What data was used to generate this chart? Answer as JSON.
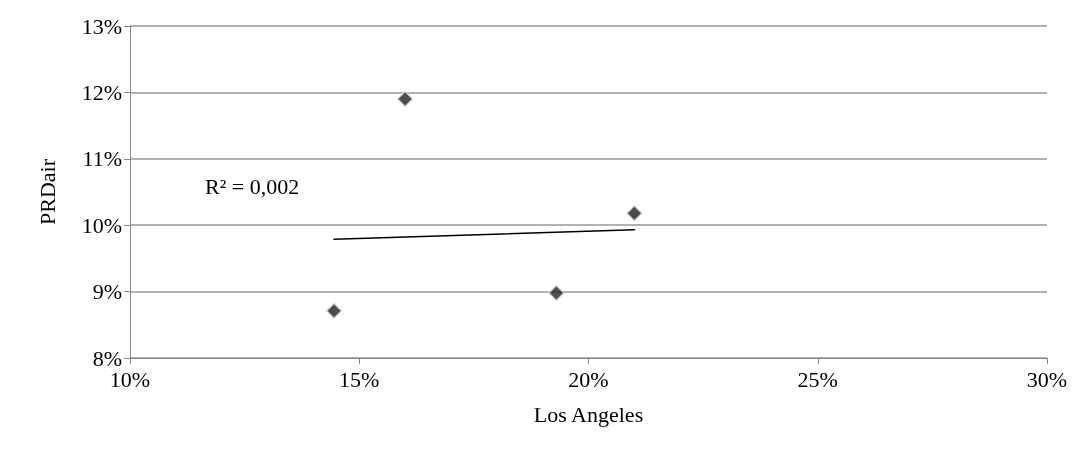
{
  "chart_data": {
    "type": "scatter",
    "xlabel": "Los Angeles",
    "ylabel": "PRDair",
    "x": [
      14.45,
      16.0,
      19.3,
      21.0
    ],
    "series": [
      {
        "color": "#231f20",
        "values": [
          8.71,
          11.9,
          8.98,
          10.18
        ],
        "marker": "diamond"
      },
      {
        "type": "line",
        "color": "#000000",
        "x": [
          14.45,
          21.0
        ],
        "values": [
          9.79,
          9.93
        ],
        "marker": "none",
        "line_style": "solid"
      }
    ],
    "xlim": [
      10,
      30
    ],
    "xticks": [
      {
        "value": 10,
        "label": "10%"
      },
      {
        "value": 15,
        "label": "15%"
      },
      {
        "value": 20,
        "label": "20%"
      },
      {
        "value": 25,
        "label": "25%"
      },
      {
        "value": 30,
        "label": "30%"
      }
    ],
    "ylim": [
      8,
      13
    ],
    "yticks": [
      {
        "value": 8,
        "label": "8%"
      },
      {
        "value": 9,
        "label": "9%"
      },
      {
        "value": 10,
        "label": "10%"
      },
      {
        "value": 11,
        "label": "11%"
      },
      {
        "value": 12,
        "label": "12%"
      },
      {
        "value": 13,
        "label": "13%"
      }
    ],
    "grid": "y",
    "annotations": [
      "R² = 0,002"
    ]
  }
}
